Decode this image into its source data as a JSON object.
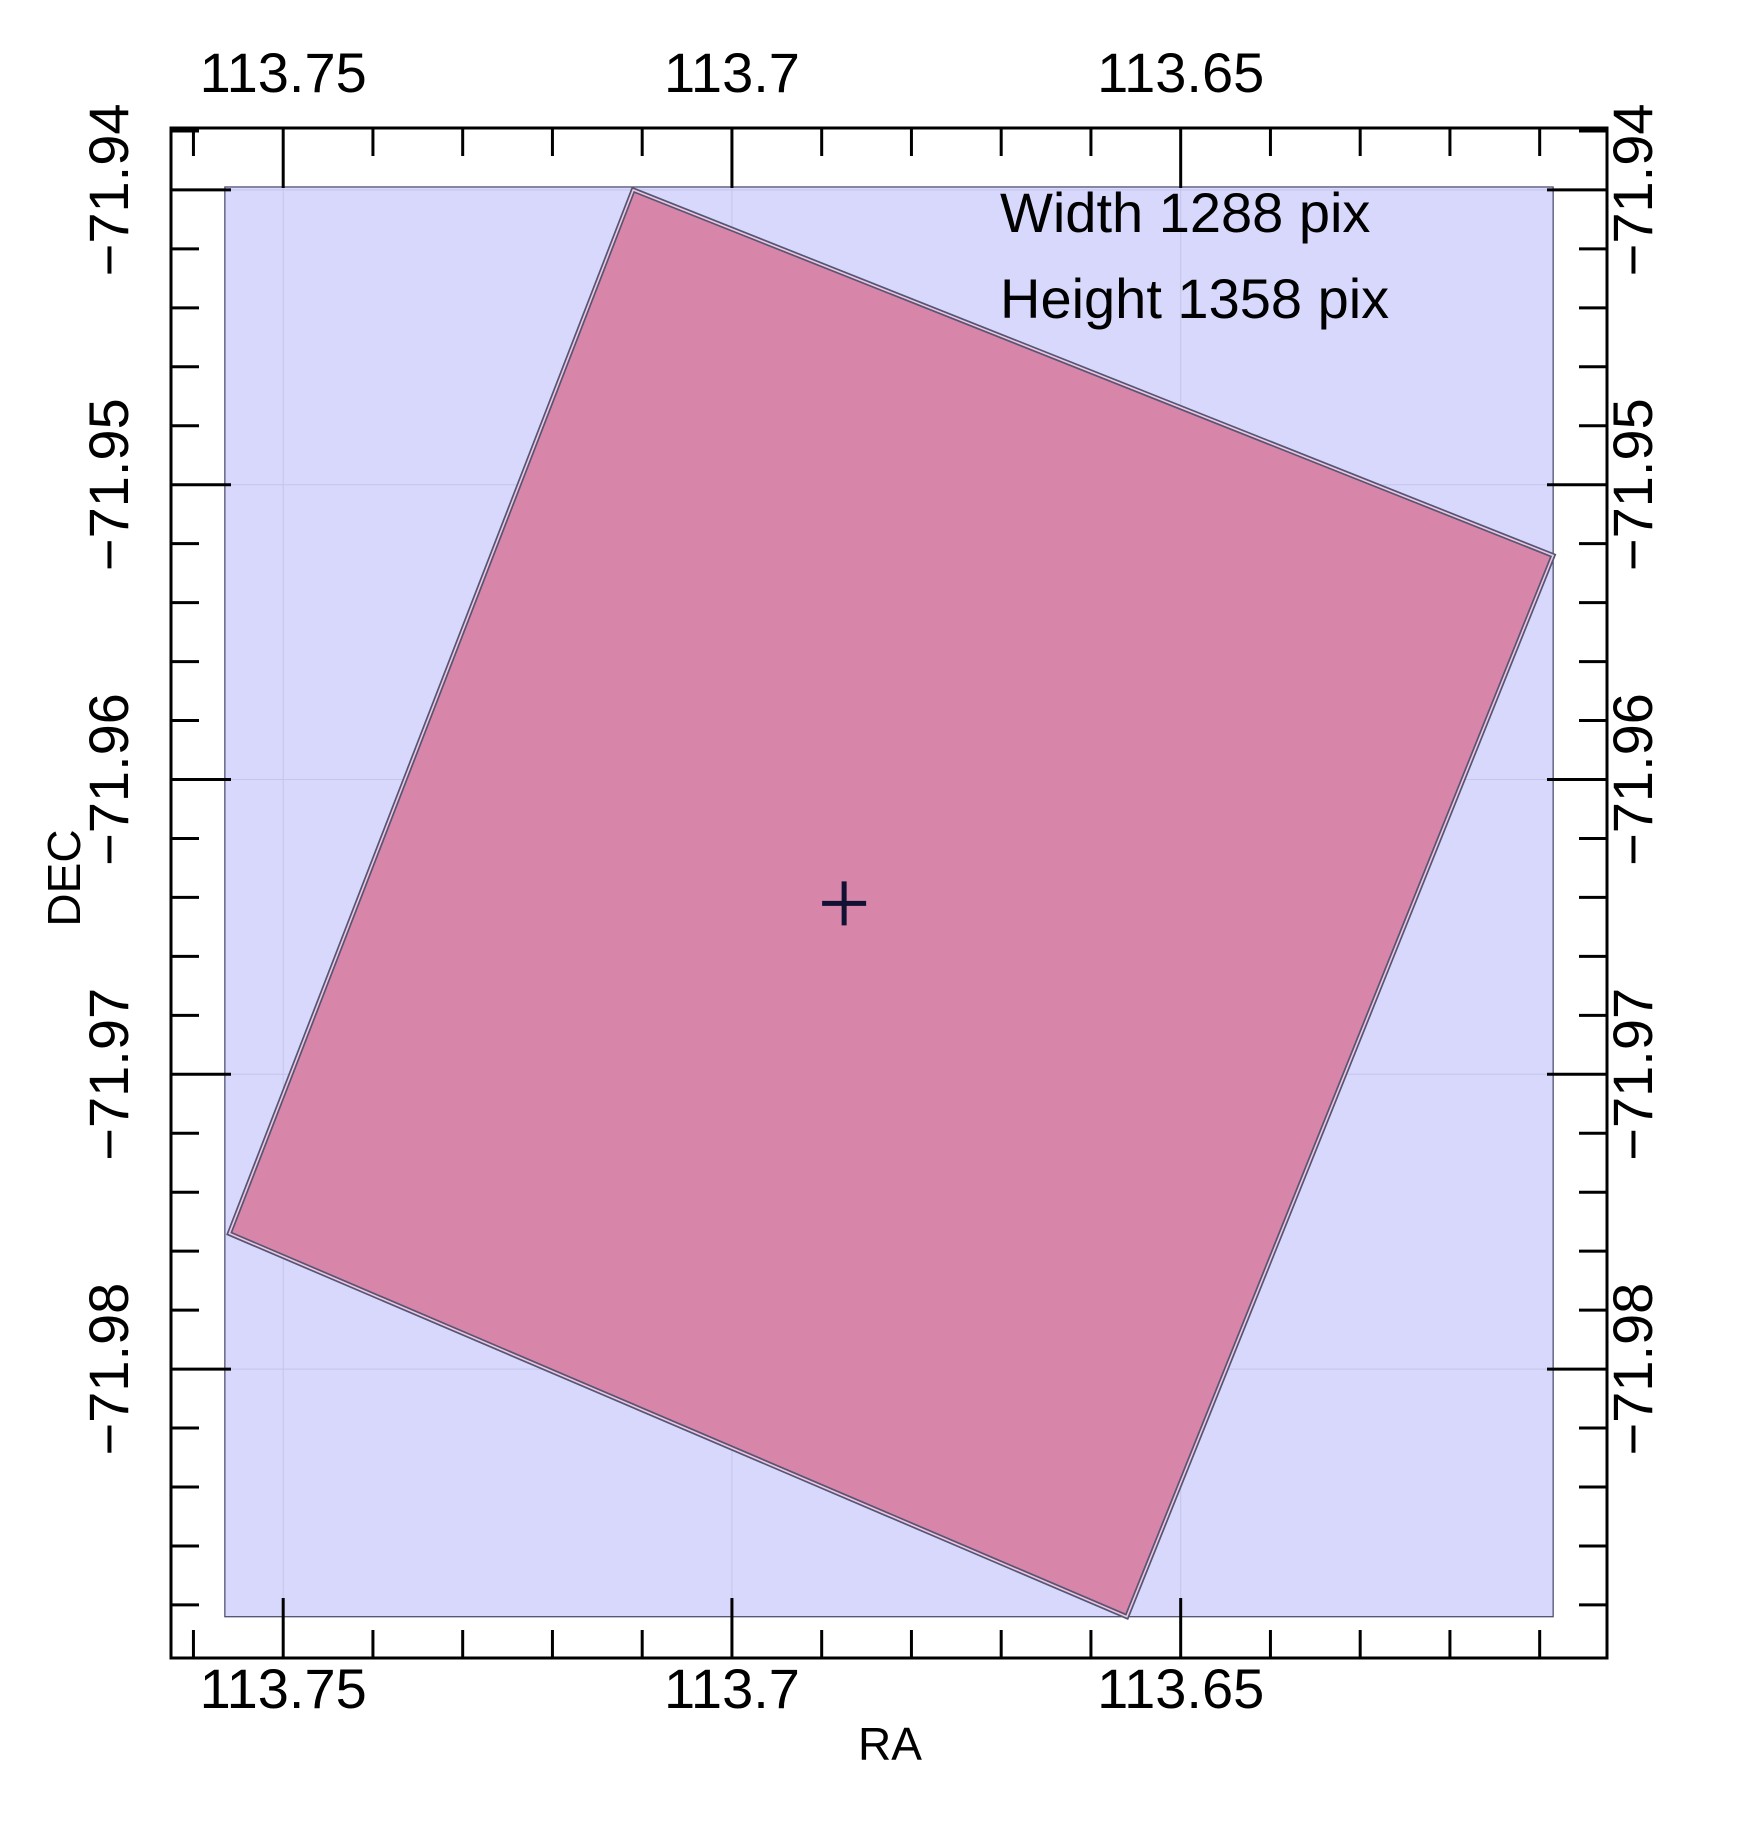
{
  "chart_data": {
    "type": "footprint",
    "xlabel": "RA",
    "ylabel": "DEC",
    "x_axis": {
      "range": [
        113.7625,
        113.6025
      ],
      "reversed": true,
      "ticks": [
        113.75,
        113.7,
        113.65
      ],
      "tick_labels": [
        "113.75",
        "113.7",
        "113.65"
      ]
    },
    "y_axis": {
      "range": [
        -71.9898,
        -71.9379
      ],
      "ticks": [
        -71.94,
        -71.95,
        -71.96,
        -71.97,
        -71.98
      ],
      "tick_labels": [
        "−71.94",
        "−71.95",
        "−71.96",
        "−71.97",
        "−71.98"
      ]
    },
    "grid": true,
    "background_region": {
      "ra": [
        113.7565,
        113.6085
      ],
      "dec": [
        -71.9884,
        -71.9399
      ],
      "color": "#d8d8fc"
    },
    "footprint_polygon": {
      "color": "#d885aa",
      "edge_color": "#555577",
      "vertices": [
        [
          113.711,
          -71.94
        ],
        [
          113.6085,
          -71.9524
        ],
        [
          113.656,
          -71.9884
        ],
        [
          113.756,
          -71.9754
        ]
      ]
    },
    "center_marker": {
      "ra": 113.6875,
      "dec": -71.9642,
      "symbol": "+"
    },
    "annotations": [
      "Width 1288 pix",
      "Height 1358 pix"
    ]
  }
}
